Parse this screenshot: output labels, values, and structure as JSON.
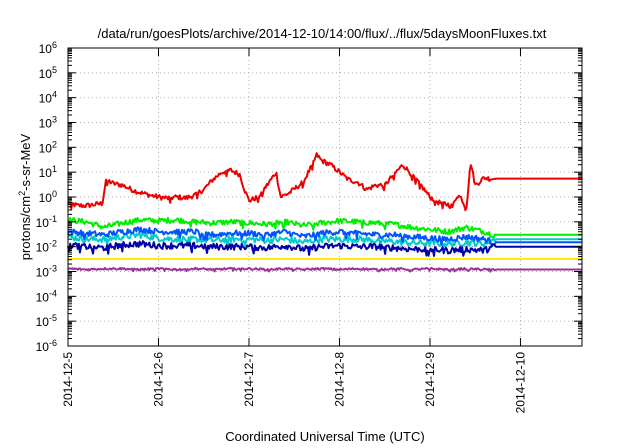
{
  "chart_data": {
    "type": "line",
    "title": "/data/run/goesPlots/archive/2014-12-10/14:00/flux/../flux/5daysMoonFluxes.txt",
    "xlabel": "Coordinated Universal Time (UTC)",
    "ylabel": {
      "prefix": "protons/cm",
      "sup": "2",
      "suffix": "-s-sr-MeV"
    },
    "yscale": "log",
    "ylim_exp": [
      -6,
      6
    ],
    "xlim_days": [
      "2014-12-05",
      "2014-12-10T16:00"
    ],
    "grid": true,
    "x_ticks": [
      "2014-12-5",
      "2014-12-6",
      "2014-12-7",
      "2014-12-8",
      "2014-12-9",
      "2014-12-10"
    ],
    "y_ticks": [
      {
        "base": "10",
        "exp": "-6"
      },
      {
        "base": "10",
        "exp": "-5"
      },
      {
        "base": "10",
        "exp": "-4"
      },
      {
        "base": "10",
        "exp": "-3"
      },
      {
        "base": "10",
        "exp": "-2"
      },
      {
        "base": "10",
        "exp": "-1"
      },
      {
        "base": "10",
        "exp": "0"
      },
      {
        "base": "10",
        "exp": "1"
      },
      {
        "base": "10",
        "exp": "2"
      },
      {
        "base": "10",
        "exp": "3"
      },
      {
        "base": "10",
        "exp": "4"
      },
      {
        "base": "10",
        "exp": "5"
      },
      {
        "base": "10",
        "exp": "6"
      }
    ],
    "series_end_days": 4.72,
    "series": [
      {
        "color": "#ee0000",
        "values": [
          [
            0.0,
            0.6
          ],
          [
            0.1,
            0.45
          ],
          [
            0.2,
            0.45
          ],
          [
            0.3,
            0.5
          ],
          [
            0.38,
            0.55
          ],
          [
            0.42,
            5.0
          ],
          [
            0.5,
            3.5
          ],
          [
            0.6,
            3.0
          ],
          [
            0.7,
            2.0
          ],
          [
            0.8,
            1.5
          ],
          [
            0.9,
            1.2
          ],
          [
            1.0,
            1.0
          ],
          [
            1.1,
            0.9
          ],
          [
            1.2,
            1.0
          ],
          [
            1.3,
            0.9
          ],
          [
            1.4,
            1.2
          ],
          [
            1.5,
            2.0
          ],
          [
            1.6,
            5.0
          ],
          [
            1.7,
            10.0
          ],
          [
            1.8,
            12.0
          ],
          [
            1.9,
            8.0
          ],
          [
            1.95,
            2.0
          ],
          [
            2.0,
            0.7
          ],
          [
            2.1,
            1.0
          ],
          [
            2.2,
            3.0
          ],
          [
            2.3,
            10.0
          ],
          [
            2.35,
            1.0
          ],
          [
            2.45,
            1.5
          ],
          [
            2.6,
            4.0
          ],
          [
            2.7,
            20.0
          ],
          [
            2.75,
            50.0
          ],
          [
            2.8,
            30.0
          ],
          [
            2.9,
            20.0
          ],
          [
            3.0,
            10.0
          ],
          [
            3.1,
            5.0
          ],
          [
            3.2,
            4.0
          ],
          [
            3.3,
            2.0
          ],
          [
            3.4,
            3.0
          ],
          [
            3.5,
            3.0
          ],
          [
            3.6,
            8.0
          ],
          [
            3.7,
            20.0
          ],
          [
            3.8,
            8.0
          ],
          [
            3.9,
            3.0
          ],
          [
            4.0,
            1.0
          ],
          [
            4.1,
            0.6
          ],
          [
            4.2,
            0.5
          ],
          [
            4.25,
            0.4
          ],
          [
            4.3,
            1.2
          ],
          [
            4.35,
            0.9
          ],
          [
            4.4,
            0.3
          ],
          [
            4.45,
            25.0
          ],
          [
            4.5,
            3.0
          ],
          [
            4.6,
            6.0
          ],
          [
            4.65,
            5.5
          ],
          [
            4.7,
            5.5
          ],
          [
            5.68,
            5.5
          ]
        ]
      },
      {
        "color": "#00ee00",
        "values": [
          [
            0.0,
            0.12
          ],
          [
            0.2,
            0.1
          ],
          [
            0.4,
            0.06
          ],
          [
            0.6,
            0.09
          ],
          [
            0.8,
            0.12
          ],
          [
            1.0,
            0.11
          ],
          [
            1.2,
            0.12
          ],
          [
            1.4,
            0.1
          ],
          [
            1.6,
            0.09
          ],
          [
            1.8,
            0.1
          ],
          [
            2.0,
            0.09
          ],
          [
            2.2,
            0.08
          ],
          [
            2.4,
            0.1
          ],
          [
            2.6,
            0.07
          ],
          [
            2.8,
            0.09
          ],
          [
            3.0,
            0.11
          ],
          [
            3.2,
            0.1
          ],
          [
            3.4,
            0.09
          ],
          [
            3.6,
            0.08
          ],
          [
            3.8,
            0.06
          ],
          [
            4.0,
            0.05
          ],
          [
            4.2,
            0.04
          ],
          [
            4.4,
            0.06
          ],
          [
            4.6,
            0.04
          ],
          [
            4.7,
            0.03
          ],
          [
            5.68,
            0.03
          ]
        ]
      },
      {
        "color": "#00cccc",
        "values": [
          [
            0.0,
            0.025
          ],
          [
            0.2,
            0.02
          ],
          [
            0.4,
            0.02
          ],
          [
            0.6,
            0.025
          ],
          [
            0.8,
            0.03
          ],
          [
            1.0,
            0.022
          ],
          [
            1.2,
            0.02
          ],
          [
            1.4,
            0.02
          ],
          [
            1.6,
            0.018
          ],
          [
            1.8,
            0.02
          ],
          [
            2.0,
            0.02
          ],
          [
            2.2,
            0.018
          ],
          [
            2.4,
            0.02
          ],
          [
            2.6,
            0.015
          ],
          [
            2.8,
            0.02
          ],
          [
            3.0,
            0.02
          ],
          [
            3.2,
            0.02
          ],
          [
            3.4,
            0.018
          ],
          [
            3.6,
            0.016
          ],
          [
            3.8,
            0.014
          ],
          [
            4.0,
            0.014
          ],
          [
            4.2,
            0.013
          ],
          [
            4.4,
            0.015
          ],
          [
            4.6,
            0.013
          ],
          [
            4.7,
            0.02
          ],
          [
            5.68,
            0.02
          ]
        ]
      },
      {
        "color": "#0055ff",
        "values": [
          [
            0.0,
            0.04
          ],
          [
            0.2,
            0.035
          ],
          [
            0.4,
            0.03
          ],
          [
            0.6,
            0.04
          ],
          [
            0.8,
            0.05
          ],
          [
            1.0,
            0.04
          ],
          [
            1.2,
            0.04
          ],
          [
            1.4,
            0.04
          ],
          [
            1.6,
            0.03
          ],
          [
            1.8,
            0.035
          ],
          [
            2.0,
            0.035
          ],
          [
            2.2,
            0.03
          ],
          [
            2.4,
            0.04
          ],
          [
            2.6,
            0.025
          ],
          [
            2.8,
            0.035
          ],
          [
            3.0,
            0.04
          ],
          [
            3.2,
            0.035
          ],
          [
            3.4,
            0.03
          ],
          [
            3.6,
            0.03
          ],
          [
            3.8,
            0.025
          ],
          [
            4.0,
            0.022
          ],
          [
            4.2,
            0.02
          ],
          [
            4.4,
            0.025
          ],
          [
            4.6,
            0.02
          ],
          [
            4.7,
            0.015
          ],
          [
            5.68,
            0.015
          ]
        ]
      },
      {
        "color": "#0000aa",
        "values": [
          [
            0.0,
            0.012
          ],
          [
            0.2,
            0.01
          ],
          [
            0.4,
            0.009
          ],
          [
            0.6,
            0.012
          ],
          [
            0.8,
            0.013
          ],
          [
            1.0,
            0.011
          ],
          [
            1.2,
            0.011
          ],
          [
            1.4,
            0.011
          ],
          [
            1.6,
            0.01
          ],
          [
            1.8,
            0.01
          ],
          [
            2.0,
            0.01
          ],
          [
            2.2,
            0.009
          ],
          [
            2.4,
            0.011
          ],
          [
            2.6,
            0.008
          ],
          [
            2.8,
            0.01
          ],
          [
            3.0,
            0.011
          ],
          [
            3.2,
            0.01
          ],
          [
            3.4,
            0.01
          ],
          [
            3.6,
            0.009
          ],
          [
            3.8,
            0.008
          ],
          [
            4.0,
            0.008
          ],
          [
            4.2,
            0.007
          ],
          [
            4.4,
            0.008
          ],
          [
            4.6,
            0.007
          ],
          [
            4.7,
            0.01
          ],
          [
            5.68,
            0.01
          ]
        ]
      },
      {
        "color": "#ffee00",
        "values": [
          [
            0.0,
            0.0032
          ],
          [
            5.68,
            0.0032
          ]
        ]
      },
      {
        "color": "#993399",
        "values": [
          [
            0.0,
            0.0013
          ],
          [
            0.2,
            0.0012
          ],
          [
            0.4,
            0.0013
          ],
          [
            0.6,
            0.0013
          ],
          [
            0.8,
            0.0012
          ],
          [
            1.0,
            0.0013
          ],
          [
            1.2,
            0.0012
          ],
          [
            1.4,
            0.0013
          ],
          [
            1.6,
            0.0012
          ],
          [
            1.8,
            0.0013
          ],
          [
            2.0,
            0.0013
          ],
          [
            2.2,
            0.0012
          ],
          [
            2.4,
            0.0013
          ],
          [
            2.6,
            0.0012
          ],
          [
            2.8,
            0.0013
          ],
          [
            3.0,
            0.0012
          ],
          [
            3.2,
            0.0013
          ],
          [
            3.4,
            0.0012
          ],
          [
            3.6,
            0.0013
          ],
          [
            3.8,
            0.0012
          ],
          [
            4.0,
            0.0013
          ],
          [
            4.2,
            0.0012
          ],
          [
            4.4,
            0.0013
          ],
          [
            4.6,
            0.0012
          ],
          [
            4.7,
            0.0012
          ],
          [
            5.68,
            0.0012
          ]
        ]
      }
    ]
  }
}
